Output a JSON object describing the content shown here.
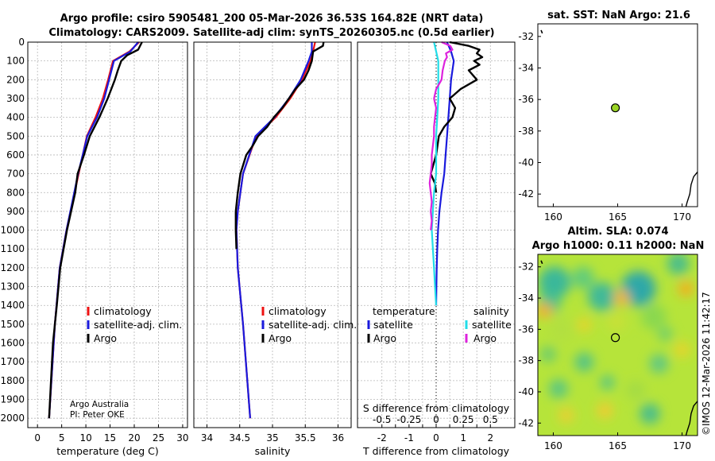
{
  "header": {
    "title_line1": "Argo profile: csiro 5905481_200 05-Mar-2026 36.53S 164.82E (NRT data)",
    "title_line2": "Climatology: CARS2009. Satellite-adj clim: synTS_20260305.nc (0.5d earlier)"
  },
  "credit": {
    "line1": "Argo Australia",
    "line2": "PI: Peter OKE"
  },
  "timestamp": "©IMOS 12-Mar-2026 11:42:17",
  "colors": {
    "climatology": "#ee1111",
    "satellite": "#1a1add",
    "argo": "#000000",
    "sat_salinity": "#22dde8",
    "argo_salinity": "#dd22dd"
  },
  "legend_temp": {
    "items": [
      "climatology",
      "satellite-adj. clim.",
      "Argo"
    ]
  },
  "legend_sal": {
    "items": [
      "climatology",
      "satellite-adj. clim.",
      "Argo"
    ]
  },
  "legend_diff": {
    "temp_header": "temperature",
    "sal_header": "salinity",
    "temp_items": [
      "satellite",
      "Argo"
    ],
    "sal_items": [
      "satellite",
      "Argo"
    ]
  },
  "map_sst": {
    "title": "sat. SST: NaN Argo: 21.6",
    "x_ticks": [
      "160",
      "165",
      "170"
    ],
    "y_ticks": [
      "-32",
      "-34",
      "-36",
      "-38",
      "-40",
      "-42"
    ],
    "float_lon": 164.82,
    "float_lat": -36.53
  },
  "map_sla": {
    "title_line1": "Altim. SLA: 0.074",
    "title_line2": "Argo h1000: 0.11 h2000: NaN",
    "x_ticks": [
      "160",
      "165",
      "170"
    ],
    "y_ticks": [
      "-32",
      "-34",
      "-36",
      "-38",
      "-40",
      "-42"
    ],
    "float_lon": 164.82,
    "float_lat": -36.53
  },
  "chart_data": [
    {
      "type": "line",
      "title": "",
      "xlabel": "temperature (deg C)",
      "ylabel": "",
      "xlim": [
        -2,
        31
      ],
      "ylim": [
        2050,
        0
      ],
      "x_ticks": [
        "0",
        "5",
        "10",
        "15",
        "20",
        "25",
        "30"
      ],
      "y_ticks": [
        "0",
        "100",
        "200",
        "300",
        "400",
        "500",
        "600",
        "700",
        "800",
        "900",
        "1000",
        "1100",
        "1200",
        "1300",
        "1400",
        "1500",
        "1600",
        "1700",
        "1800",
        "1900",
        "2000"
      ],
      "series": [
        {
          "name": "climatology",
          "depth": [
            0,
            50,
            100,
            200,
            300,
            400,
            500,
            700,
            1000,
            1200,
            1500,
            2000
          ],
          "values": [
            21.0,
            19.0,
            15.6,
            14.6,
            13.5,
            12.0,
            10.2,
            8.5,
            6.0,
            4.6,
            3.6,
            2.4
          ]
        },
        {
          "name": "satellite-adj. clim.",
          "depth": [
            0,
            50,
            100,
            200,
            300,
            400,
            500,
            700,
            1000,
            1200,
            1500,
            2000
          ],
          "values": [
            20.8,
            19.2,
            15.8,
            14.8,
            13.8,
            12.3,
            10.3,
            8.4,
            6.0,
            4.6,
            3.6,
            2.4
          ]
        },
        {
          "name": "Argo",
          "depth": [
            0,
            10,
            40,
            70,
            100,
            150,
            200,
            300,
            400,
            500,
            600,
            700,
            800,
            1000,
            1200,
            1400,
            1600,
            1800,
            2000
          ],
          "values": [
            21.6,
            21.4,
            20.8,
            18.5,
            17.3,
            16.6,
            16.0,
            14.5,
            12.8,
            10.8,
            9.6,
            8.3,
            7.8,
            6.1,
            4.7,
            4.0,
            3.2,
            2.8,
            2.4
          ]
        }
      ]
    },
    {
      "type": "line",
      "title": "",
      "xlabel": "salinity",
      "ylabel": "",
      "xlim": [
        33.8,
        36.2
      ],
      "ylim": [
        2050,
        0
      ],
      "x_ticks": [
        "34",
        "34.5",
        "35",
        "35.5",
        "36"
      ],
      "series": [
        {
          "name": "climatology",
          "depth": [
            0,
            50,
            100,
            200,
            300,
            400,
            500,
            700,
            900,
            1000,
            1200,
            1500,
            2000
          ],
          "values": [
            35.65,
            35.62,
            35.58,
            35.45,
            35.27,
            35.05,
            34.75,
            34.55,
            34.47,
            34.45,
            34.47,
            34.55,
            34.66
          ]
        },
        {
          "name": "satellite-adj. clim.",
          "depth": [
            0,
            50,
            100,
            200,
            300,
            400,
            500,
            700,
            900,
            1000,
            1200,
            1500,
            2000
          ],
          "values": [
            35.6,
            35.6,
            35.55,
            35.43,
            35.25,
            35.03,
            34.74,
            34.55,
            34.47,
            34.45,
            34.47,
            34.55,
            34.66
          ]
        },
        {
          "name": "Argo",
          "depth": [
            0,
            20,
            50,
            100,
            150,
            200,
            250,
            300,
            350,
            400,
            450,
            500,
            550,
            600,
            700,
            800,
            900,
            1000,
            1100
          ],
          "values": [
            35.78,
            35.77,
            35.62,
            35.6,
            35.55,
            35.48,
            35.35,
            35.25,
            35.15,
            35.02,
            34.92,
            34.78,
            34.7,
            34.6,
            34.51,
            34.47,
            34.44,
            34.44,
            34.45
          ]
        }
      ]
    },
    {
      "type": "line",
      "title": "",
      "xlabel": "T difference from climatology",
      "x2label": "S difference from climatology",
      "xlim": [
        -2.9,
        2.9
      ],
      "ylim": [
        2050,
        0
      ],
      "x_ticks": [
        "-2",
        "-1.5",
        "-1",
        "-0.5",
        "0",
        "0.5",
        "1",
        "1.5",
        "2"
      ],
      "x_ticks_labels": [
        "-2",
        "",
        "-1",
        "",
        "0",
        "",
        "1",
        "",
        "2"
      ],
      "x2_ticks": [
        "-0.5",
        "-0.25",
        "0",
        "0.25",
        "0.5"
      ],
      "series": [
        {
          "name": "temperature satellite",
          "depth": [
            0,
            50,
            100,
            200,
            300,
            400,
            500,
            600,
            700,
            800,
            900,
            1000,
            1100,
            1200,
            1300,
            1400
          ],
          "values": [
            0.4,
            0.55,
            0.65,
            0.55,
            0.5,
            0.45,
            0.4,
            0.35,
            0.3,
            0.2,
            0.12,
            0.07,
            0.04,
            0.02,
            0.01,
            0.0
          ]
        },
        {
          "name": "temperature Argo",
          "depth": [
            0,
            20,
            40,
            60,
            80,
            100,
            120,
            150,
            200,
            250,
            300,
            350,
            400,
            450,
            500,
            600,
            650,
            700,
            750,
            800
          ],
          "values": [
            0.5,
            1.2,
            1.6,
            1.5,
            1.7,
            1.4,
            1.6,
            1.2,
            1.5,
            0.9,
            0.5,
            0.7,
            0.6,
            0.3,
            0.1,
            0.0,
            -0.1,
            -0.2,
            -0.05,
            0.0
          ]
        },
        {
          "name": "salinity satellite",
          "depth": [
            0,
            50,
            100,
            200,
            300,
            400,
            500,
            600,
            700,
            800,
            900,
            1000,
            1100,
            1200,
            1300,
            1400
          ],
          "values": [
            -0.02,
            0.0,
            0.02,
            0.02,
            0.02,
            0.01,
            0.0,
            0.0,
            0.0,
            -0.02,
            -0.03,
            -0.04,
            -0.03,
            -0.02,
            -0.01,
            0.0
          ]
        },
        {
          "name": "salinity Argo",
          "depth": [
            0,
            20,
            40,
            60,
            80,
            100,
            150,
            200,
            250,
            300,
            350,
            400,
            450,
            500,
            550,
            600,
            650,
            700,
            750,
            800,
            850,
            900,
            950,
            1000
          ],
          "values": [
            0.05,
            0.13,
            0.15,
            0.09,
            0.1,
            0.08,
            0.06,
            0.05,
            0.0,
            -0.02,
            0.0,
            -0.01,
            -0.02,
            -0.02,
            -0.03,
            -0.04,
            -0.04,
            -0.05,
            -0.06,
            -0.05,
            -0.04,
            -0.05,
            -0.04,
            -0.05
          ]
        }
      ]
    }
  ]
}
